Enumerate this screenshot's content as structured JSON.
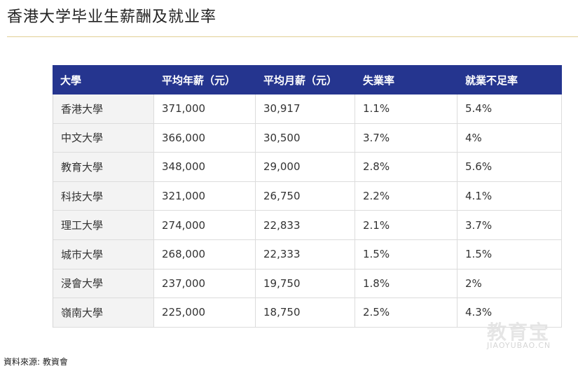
{
  "title": "香港大学毕业生薪酬及就业率",
  "table": {
    "headers": [
      "大學",
      "平均年薪（元）",
      "平均月薪（元）",
      "失業率",
      "就業不足率"
    ],
    "rows": [
      [
        "香港大學",
        "371,000",
        "30,917",
        "1.1%",
        "5.4%"
      ],
      [
        "中文大學",
        "366,000",
        "30,500",
        "3.7%",
        "4%"
      ],
      [
        "教育大學",
        "348,000",
        "29,000",
        "2.8%",
        "5.6%"
      ],
      [
        "科技大學",
        "321,000",
        "26,750",
        "2.2%",
        "4.1%"
      ],
      [
        "理工大學",
        "274,000",
        "22,833",
        "2.1%",
        "3.7%"
      ],
      [
        "城市大學",
        "268,000",
        "22,333",
        "1.5%",
        "1.5%"
      ],
      [
        "浸會大學",
        "237,000",
        "19,750",
        "1.8%",
        "2%"
      ],
      [
        "嶺南大學",
        "225,000",
        "18,750",
        "2.5%",
        "4.3%"
      ]
    ]
  },
  "source": "資料來源: 教資會",
  "watermark": {
    "name": "教育宝",
    "url": "JIAOYUBAO.CN"
  },
  "colors": {
    "header_bg": "#25358f",
    "divider": "#e2cf94"
  }
}
